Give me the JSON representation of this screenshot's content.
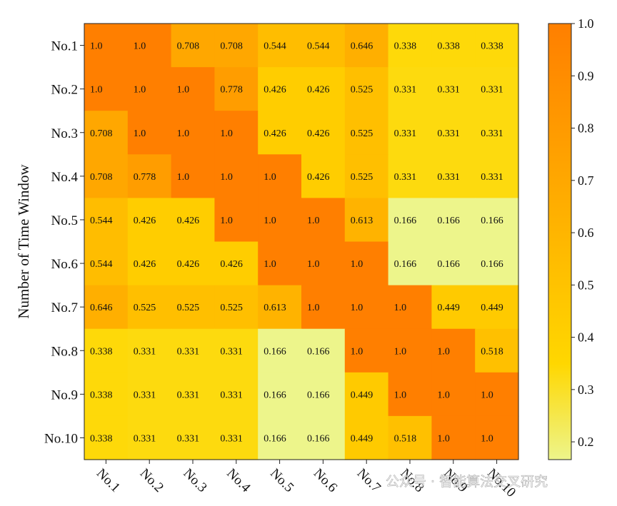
{
  "chart_data": {
    "type": "heatmap",
    "title": "",
    "xlabel": "",
    "ylabel": "Number of Time Window",
    "x_categories": [
      "No.1",
      "No.2",
      "No.3",
      "No.4",
      "No.5",
      "No.6",
      "No.7",
      "No.8",
      "No.9",
      "No.10"
    ],
    "y_categories": [
      "No.1",
      "No.2",
      "No.3",
      "No.4",
      "No.5",
      "No.6",
      "No.7",
      "No.8",
      "No.9",
      "No.10"
    ],
    "values": [
      [
        1.0,
        1.0,
        0.708,
        0.708,
        0.544,
        0.544,
        0.646,
        0.338,
        0.338,
        0.338
      ],
      [
        1.0,
        1.0,
        1.0,
        0.778,
        0.426,
        0.426,
        0.525,
        0.331,
        0.331,
        0.331
      ],
      [
        0.708,
        1.0,
        1.0,
        1.0,
        0.426,
        0.426,
        0.525,
        0.331,
        0.331,
        0.331
      ],
      [
        0.708,
        0.778,
        1.0,
        1.0,
        1.0,
        0.426,
        0.525,
        0.331,
        0.331,
        0.331
      ],
      [
        0.544,
        0.426,
        0.426,
        1.0,
        1.0,
        1.0,
        0.613,
        0.166,
        0.166,
        0.166
      ],
      [
        0.544,
        0.426,
        0.426,
        0.426,
        1.0,
        1.0,
        1.0,
        0.166,
        0.166,
        0.166
      ],
      [
        0.646,
        0.525,
        0.525,
        0.525,
        0.613,
        1.0,
        1.0,
        1.0,
        0.449,
        0.449
      ],
      [
        0.338,
        0.331,
        0.331,
        0.331,
        0.166,
        0.166,
        1.0,
        1.0,
        1.0,
        0.518
      ],
      [
        0.338,
        0.331,
        0.331,
        0.331,
        0.166,
        0.166,
        0.449,
        1.0,
        1.0,
        1.0
      ],
      [
        0.338,
        0.331,
        0.331,
        0.331,
        0.166,
        0.166,
        0.449,
        0.518,
        1.0,
        1.0
      ]
    ],
    "value_labels": [
      [
        "1.0",
        "1.0",
        "0.708",
        "0.708",
        "0.544",
        "0.544",
        "0.646",
        "0.338",
        "0.338",
        "0.338"
      ],
      [
        "1.0",
        "1.0",
        "1.0",
        "0.778",
        "0.426",
        "0.426",
        "0.525",
        "0.331",
        "0.331",
        "0.331"
      ],
      [
        "0.708",
        "1.0",
        "1.0",
        "1.0",
        "0.426",
        "0.426",
        "0.525",
        "0.331",
        "0.331",
        "0.331"
      ],
      [
        "0.708",
        "0.778",
        "1.0",
        "1.0",
        "1.0",
        "0.426",
        "0.525",
        "0.331",
        "0.331",
        "0.331"
      ],
      [
        "0.544",
        "0.426",
        "0.426",
        "1.0",
        "1.0",
        "1.0",
        "0.613",
        "0.166",
        "0.166",
        "0.166"
      ],
      [
        "0.544",
        "0.426",
        "0.426",
        "0.426",
        "1.0",
        "1.0",
        "1.0",
        "0.166",
        "0.166",
        "0.166"
      ],
      [
        "0.646",
        "0.525",
        "0.525",
        "0.525",
        "0.613",
        "1.0",
        "1.0",
        "1.0",
        "0.449",
        "0.449"
      ],
      [
        "0.338",
        "0.331",
        "0.331",
        "0.331",
        "0.166",
        "0.166",
        "1.0",
        "1.0",
        "1.0",
        "0.518"
      ],
      [
        "0.338",
        "0.331",
        "0.331",
        "0.331",
        "0.166",
        "0.166",
        "0.449",
        "1.0",
        "1.0",
        "1.0"
      ],
      [
        "0.338",
        "0.331",
        "0.331",
        "0.331",
        "0.166",
        "0.166",
        "0.449",
        "0.518",
        "1.0",
        "1.0"
      ]
    ],
    "colorbar": {
      "range": [
        0.166,
        1.0
      ],
      "ticks": [
        1.0,
        0.9,
        0.8,
        0.7,
        0.6,
        0.5,
        0.4,
        0.3,
        0.2
      ],
      "tick_labels": [
        "1.0",
        "0.9",
        "0.8",
        "0.7",
        "0.6",
        "0.5",
        "0.4",
        "0.3",
        "0.2"
      ],
      "colors": [
        "#EDF58B",
        "#FFD700",
        "#FF7F00"
      ],
      "placement": "right"
    },
    "legend": "none",
    "grid": false
  },
  "watermark": "公众号 · 智能算法交叉研究"
}
